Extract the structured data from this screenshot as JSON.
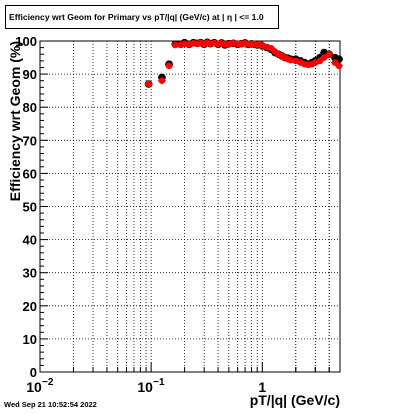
{
  "chart_data": {
    "type": "scatter",
    "title": "Efficiency wrt Geom for Primary vs pT/|q| (GeV/c) at |  η | <= 1.0",
    "xlabel": "pT/|q| (GeV/c)",
    "ylabel": "Efficiency wrt Geom (%)",
    "x_scale": "log",
    "xlim": [
      0.01,
      5.0
    ],
    "ylim": [
      0,
      100
    ],
    "grid": true,
    "x_ticks": [
      {
        "value": 0.01,
        "label": "10",
        "exponent": "−2"
      },
      {
        "value": 0.1,
        "label": "10",
        "exponent": "−1"
      },
      {
        "value": 1,
        "label": "1",
        "exponent": ""
      }
    ],
    "y_ticks": [
      "0",
      "10",
      "20",
      "30",
      "40",
      "50",
      "60",
      "70",
      "80",
      "90",
      "100"
    ],
    "series": [
      {
        "color": "#000000",
        "marker": "circle",
        "points": [
          [
            0.095,
            87.0
          ],
          [
            0.125,
            89.0
          ],
          [
            0.145,
            93.0
          ],
          [
            0.165,
            99.0
          ],
          [
            0.185,
            99.0
          ],
          [
            0.2,
            99.5
          ],
          [
            0.22,
            99.0
          ],
          [
            0.24,
            99.5
          ],
          [
            0.26,
            99.3
          ],
          [
            0.28,
            99.5
          ],
          [
            0.3,
            99.0
          ],
          [
            0.32,
            99.6
          ],
          [
            0.34,
            99.2
          ],
          [
            0.37,
            99.5
          ],
          [
            0.4,
            99.0
          ],
          [
            0.43,
            99.4
          ],
          [
            0.46,
            98.8
          ],
          [
            0.5,
            99.2
          ],
          [
            0.55,
            99.3
          ],
          [
            0.6,
            99.0
          ],
          [
            0.65,
            99.2
          ],
          [
            0.7,
            99.4
          ],
          [
            0.75,
            99.0
          ],
          [
            0.8,
            99.1
          ],
          [
            0.85,
            99.0
          ],
          [
            0.9,
            98.8
          ],
          [
            0.95,
            99.0
          ],
          [
            1.0,
            98.5
          ],
          [
            1.1,
            98.0
          ],
          [
            1.2,
            97.5
          ],
          [
            1.3,
            96.5
          ],
          [
            1.4,
            96.0
          ],
          [
            1.5,
            95.5
          ],
          [
            1.6,
            95.0
          ],
          [
            1.7,
            94.8
          ],
          [
            1.8,
            94.5
          ],
          [
            2.0,
            94.5
          ],
          [
            2.2,
            94.0
          ],
          [
            2.4,
            93.5
          ],
          [
            2.6,
            93.0
          ],
          [
            2.8,
            93.5
          ],
          [
            3.0,
            94.0
          ],
          [
            3.3,
            95.0
          ],
          [
            3.6,
            96.5
          ],
          [
            4.0,
            96.0
          ],
          [
            4.5,
            95.0
          ],
          [
            4.9,
            94.5
          ]
        ]
      },
      {
        "color": "#ff0000",
        "marker": "circle",
        "points": [
          [
            0.095,
            87.0
          ],
          [
            0.125,
            88.0
          ],
          [
            0.145,
            92.5
          ],
          [
            0.165,
            98.8
          ],
          [
            0.185,
            98.9
          ],
          [
            0.2,
            99.2
          ],
          [
            0.22,
            99.0
          ],
          [
            0.24,
            99.3
          ],
          [
            0.26,
            99.2
          ],
          [
            0.28,
            99.4
          ],
          [
            0.3,
            99.1
          ],
          [
            0.32,
            99.5
          ],
          [
            0.34,
            99.2
          ],
          [
            0.37,
            99.4
          ],
          [
            0.4,
            99.1
          ],
          [
            0.43,
            99.3
          ],
          [
            0.46,
            99.0
          ],
          [
            0.5,
            99.1
          ],
          [
            0.55,
            99.3
          ],
          [
            0.6,
            99.1
          ],
          [
            0.65,
            99.2
          ],
          [
            0.7,
            99.3
          ],
          [
            0.75,
            99.1
          ],
          [
            0.8,
            99.0
          ],
          [
            0.85,
            99.1
          ],
          [
            0.9,
            98.9
          ],
          [
            0.95,
            99.0
          ],
          [
            1.0,
            98.6
          ],
          [
            1.1,
            98.2
          ],
          [
            1.2,
            97.8
          ],
          [
            1.3,
            96.8
          ],
          [
            1.4,
            96.0
          ],
          [
            1.5,
            95.5
          ],
          [
            1.6,
            95.0
          ],
          [
            1.7,
            94.5
          ],
          [
            1.8,
            94.2
          ],
          [
            2.0,
            94.0
          ],
          [
            2.2,
            93.5
          ],
          [
            2.4,
            93.0
          ],
          [
            2.6,
            92.8
          ],
          [
            2.8,
            93.0
          ],
          [
            3.0,
            93.5
          ],
          [
            3.3,
            94.0
          ],
          [
            3.6,
            95.0
          ],
          [
            4.0,
            96.0
          ],
          [
            4.5,
            93.5
          ],
          [
            4.9,
            92.5
          ]
        ]
      }
    ]
  },
  "footer": {
    "timestamp": "Wed Sep 21 10:52:54 2022"
  }
}
